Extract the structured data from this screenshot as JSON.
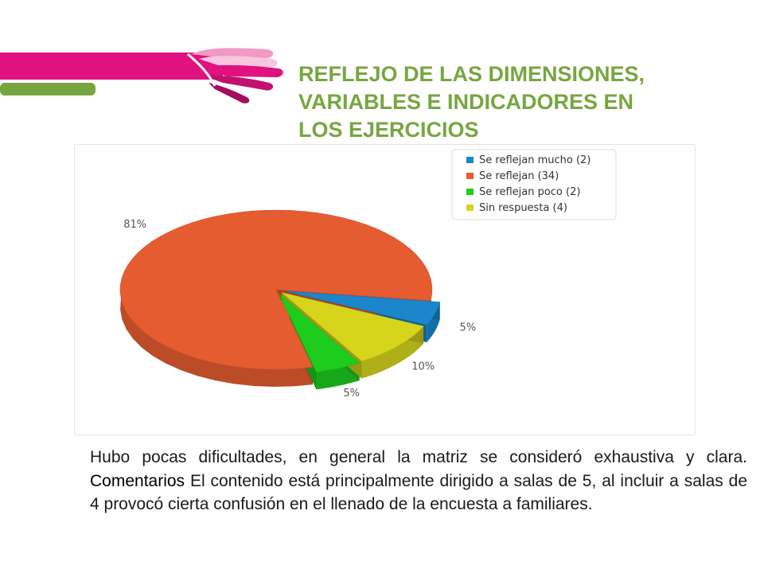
{
  "slide": {
    "title": "REFLEJO DE LAS DIMENSIONES,\nVARIABLES E INDICADORES EN\nLOS EJERCICIOS",
    "body_part1": "Hubo pocas dificultades, en general la matriz se consideró exhaustiva y clara. ",
    "body_emphasis": "Comentarios",
    "body_part2": " El contenido está principalmente dirigido a salas de 5, al incluir a salas de 4 provocó cierta  confusión en el llenado de la encuesta a familiares."
  },
  "colors": {
    "brand_magenta": "#e0127f",
    "brand_green": "#77a640",
    "brand_pink_light": "#f19ac6"
  },
  "chart_data": {
    "type": "pie",
    "title": "",
    "legend_position": "top-right",
    "series": [
      {
        "name": "Se reflejan mucho (2)",
        "value": 2,
        "label": "5%",
        "color": "#1b86cc"
      },
      {
        "name": "Se reflejan (34)",
        "value": 34,
        "label": "81%",
        "color": "#e55c31"
      },
      {
        "name": "Se reflejan poco (2)",
        "value": 2,
        "label": "5%",
        "color": "#1dcc1d"
      },
      {
        "name": "Sin respuesta (4)",
        "value": 4,
        "label": "10%",
        "color": "#d6d51c"
      }
    ]
  }
}
